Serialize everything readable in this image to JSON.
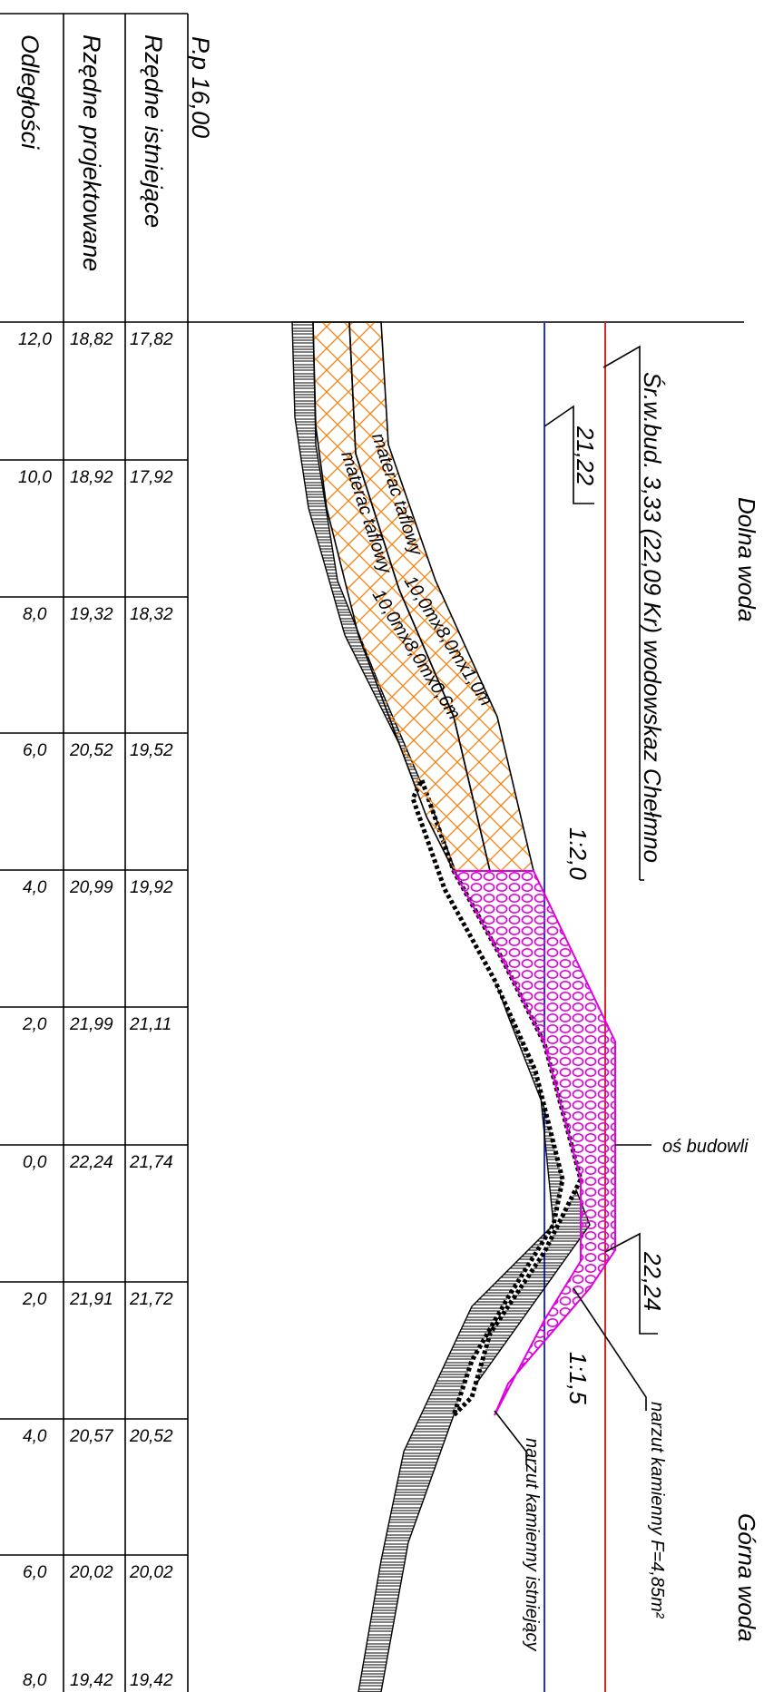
{
  "table": {
    "datum_label": "P.p 16,00",
    "rows": [
      {
        "label": "Rzędne istniejące",
        "values": [
          "17,82",
          "17,92",
          "18,32",
          "19,52",
          "19,92",
          "21,11",
          "21,74",
          "21,72",
          "20,52",
          "20,02",
          "19,42"
        ]
      },
      {
        "label": "Rzędne projektowane",
        "values": [
          "18,82",
          "18,92",
          "19,32",
          "20,52",
          "20,99",
          "21,99",
          "22,24",
          "21,91",
          "20,57",
          "20,02",
          "19,42"
        ]
      },
      {
        "label": "Odległości",
        "values": [
          "12,0",
          "10,0",
          "8,0",
          "6,0",
          "4,0",
          "2,0",
          "0,0",
          "2,0",
          "4,0",
          "6,0",
          "8,0"
        ]
      }
    ]
  },
  "annotations": {
    "dolna_woda": "Dolna woda",
    "gorna_woda": "Górna woda",
    "water_level": "Śr.w.bud. 3,33 (22,09 Kr) wodowskaz Chełmno",
    "level_2122": "21,22",
    "level_2224": "22,24",
    "slope_left": "1:2,0",
    "slope_right": "1:1,5",
    "axis": "oś budowli",
    "mat_upper_1": "materac taflowy",
    "mat_upper_2": "10,0mx8,0mx1,0m",
    "mat_lower_1": "materac taflowy",
    "mat_lower_2": "10,0mx8,0mx0,6m",
    "stone_new": "narzut kamienny F=4,85m²",
    "stone_existing": "narzut kamienny istniejący"
  },
  "colors": {
    "red_line": "#d62828",
    "blue_line": "#2233dd",
    "mattress": "#f08a1c",
    "riprap": "#e000e0",
    "ink": "#000000"
  }
}
